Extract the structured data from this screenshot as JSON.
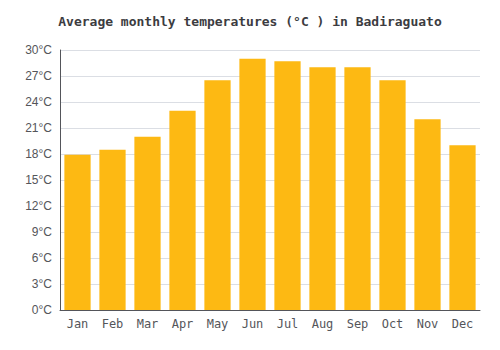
{
  "chart_data": {
    "type": "bar",
    "title": "Average monthly temperatures (°C ) in Badiraguato",
    "categories": [
      "Jan",
      "Feb",
      "Mar",
      "Apr",
      "May",
      "Jun",
      "Jul",
      "Aug",
      "Sep",
      "Oct",
      "Nov",
      "Dec"
    ],
    "values": [
      17.9,
      18.5,
      20.0,
      23.0,
      26.5,
      29.0,
      28.7,
      28.0,
      28.0,
      26.5,
      22.0,
      19.0
    ],
    "color": "#FDB913",
    "ylim": [
      0,
      30
    ],
    "yticks": [
      {
        "value": 0,
        "label": "0°C"
      },
      {
        "value": 3,
        "label": "3°C"
      },
      {
        "value": 6,
        "label": "6°C"
      },
      {
        "value": 9,
        "label": "9°C"
      },
      {
        "value": 12,
        "label": "12°C"
      },
      {
        "value": 15,
        "label": "15°C"
      },
      {
        "value": 18,
        "label": "18°C"
      },
      {
        "value": 21,
        "label": "21°C"
      },
      {
        "value": 24,
        "label": "24°C"
      },
      {
        "value": 27,
        "label": "27°C"
      },
      {
        "value": 30,
        "label": "30°C"
      }
    ],
    "grid": true
  }
}
